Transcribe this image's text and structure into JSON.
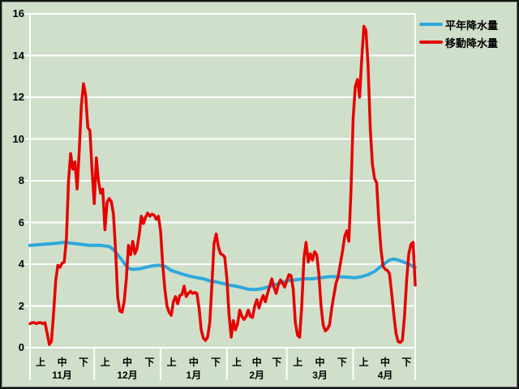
{
  "chart": {
    "legend": {
      "items": [
        {
          "label": "平年降水量",
          "color": "#2fa8dc"
        },
        {
          "label": "移動降水量",
          "color": "#e60000"
        }
      ]
    },
    "y_axis": {
      "ticks": [
        0,
        2,
        4,
        6,
        8,
        10,
        12,
        14,
        16
      ]
    },
    "x_axis": {
      "period_labels": [
        "上",
        "中",
        "下"
      ],
      "months": [
        {
          "label": "11月",
          "days": 30
        },
        {
          "label": "12月",
          "days": 31
        },
        {
          "label": "1月",
          "days": 31
        },
        {
          "label": "2月",
          "days": 28
        },
        {
          "label": "3月",
          "days": 31
        },
        {
          "label": "4月",
          "days": 30
        }
      ]
    },
    "colors": {
      "background": "#cfdfca",
      "grid": "#ffffff",
      "text": "#000000",
      "normal_line": "#2fa8dc",
      "moving_line": "#e60000"
    }
  },
  "chart_data": {
    "type": "line",
    "title": "",
    "x_unit": "daily index, Nov 1 (0) to Apr 30 (180), grouped by 上/中/下 of each month",
    "ylim": [
      0,
      16
    ],
    "grid": true,
    "legend_position": "top-right",
    "series": [
      {
        "name": "平年降水量",
        "color": "#2fa8dc",
        "points": [
          [
            0,
            4.9
          ],
          [
            6,
            4.95
          ],
          [
            12,
            5.0
          ],
          [
            16,
            5.05
          ],
          [
            20,
            5.0
          ],
          [
            24,
            4.95
          ],
          [
            28,
            4.9
          ],
          [
            33,
            4.9
          ],
          [
            37,
            4.85
          ],
          [
            39,
            4.7
          ],
          [
            41,
            4.45
          ],
          [
            43,
            4.2
          ],
          [
            44,
            4.05
          ],
          [
            45,
            3.9
          ],
          [
            46,
            3.8
          ],
          [
            48,
            3.75
          ],
          [
            51,
            3.78
          ],
          [
            54,
            3.85
          ],
          [
            57,
            3.92
          ],
          [
            60,
            3.95
          ],
          [
            63,
            3.9
          ],
          [
            66,
            3.7
          ],
          [
            69,
            3.6
          ],
          [
            72,
            3.5
          ],
          [
            75,
            3.42
          ],
          [
            78,
            3.35
          ],
          [
            81,
            3.3
          ],
          [
            84,
            3.2
          ],
          [
            87,
            3.15
          ],
          [
            90,
            3.08
          ],
          [
            93,
            3.0
          ],
          [
            96,
            2.95
          ],
          [
            99,
            2.88
          ],
          [
            102,
            2.8
          ],
          [
            105,
            2.78
          ],
          [
            108,
            2.82
          ],
          [
            111,
            2.9
          ],
          [
            114,
            3.0
          ],
          [
            117,
            3.1
          ],
          [
            120,
            3.2
          ],
          [
            124,
            3.25
          ],
          [
            128,
            3.3
          ],
          [
            132,
            3.3
          ],
          [
            136,
            3.35
          ],
          [
            140,
            3.4
          ],
          [
            144,
            3.4
          ],
          [
            148,
            3.38
          ],
          [
            152,
            3.35
          ],
          [
            155,
            3.4
          ],
          [
            158,
            3.5
          ],
          [
            161,
            3.65
          ],
          [
            164,
            3.9
          ],
          [
            166,
            4.05
          ],
          [
            168,
            4.2
          ],
          [
            170,
            4.25
          ],
          [
            172,
            4.2
          ],
          [
            174,
            4.12
          ],
          [
            176,
            4.05
          ],
          [
            178,
            3.95
          ],
          [
            180,
            3.85
          ]
        ]
      },
      {
        "name": "移動降水量",
        "color": "#e60000",
        "values_daily": [
          1.15,
          1.2,
          1.2,
          1.15,
          1.2,
          1.2,
          1.15,
          1.2,
          0.7,
          0.15,
          0.3,
          1.6,
          3.2,
          3.95,
          3.85,
          4.05,
          4.1,
          5.2,
          8.0,
          9.3,
          8.55,
          8.9,
          7.6,
          9.4,
          11.6,
          12.65,
          12.1,
          10.55,
          10.4,
          8.5,
          6.9,
          9.1,
          8.0,
          7.4,
          7.6,
          5.65,
          6.95,
          7.15,
          7.0,
          6.4,
          4.6,
          2.4,
          1.75,
          1.7,
          2.2,
          3.3,
          4.9,
          4.45,
          5.1,
          4.5,
          4.75,
          5.4,
          6.3,
          5.95,
          6.25,
          6.45,
          6.3,
          6.4,
          6.35,
          6.15,
          6.3,
          5.6,
          4.0,
          2.8,
          2.0,
          1.7,
          1.55,
          2.2,
          2.45,
          2.1,
          2.5,
          2.55,
          2.95,
          2.45,
          2.6,
          2.7,
          2.6,
          2.65,
          2.6,
          1.9,
          0.85,
          0.45,
          0.35,
          0.5,
          1.2,
          3.0,
          5.0,
          5.45,
          4.85,
          4.5,
          4.45,
          4.35,
          3.3,
          1.6,
          0.5,
          1.3,
          0.85,
          1.15,
          1.8,
          1.5,
          1.35,
          1.5,
          1.8,
          1.5,
          1.45,
          2.0,
          2.3,
          1.9,
          2.25,
          2.5,
          2.2,
          2.6,
          2.95,
          3.3,
          2.9,
          2.6,
          3.0,
          3.25,
          3.1,
          2.9,
          3.2,
          3.5,
          3.45,
          2.8,
          1.2,
          0.6,
          0.5,
          2.0,
          4.3,
          5.05,
          4.1,
          4.5,
          4.2,
          4.6,
          4.45,
          3.5,
          2.0,
          1.1,
          0.8,
          0.9,
          1.1,
          1.9,
          2.5,
          3.1,
          3.4,
          4.0,
          4.6,
          5.3,
          5.6,
          5.1,
          7.5,
          11.0,
          12.5,
          12.85,
          12.0,
          13.8,
          15.4,
          15.2,
          13.5,
          10.5,
          8.8,
          8.1,
          7.9,
          6.1,
          4.7,
          3.9,
          3.75,
          3.7,
          3.55,
          2.6,
          1.6,
          0.7,
          0.3,
          0.25,
          0.35,
          1.5,
          3.2,
          4.5,
          4.95,
          5.05,
          3.0
        ]
      }
    ]
  }
}
